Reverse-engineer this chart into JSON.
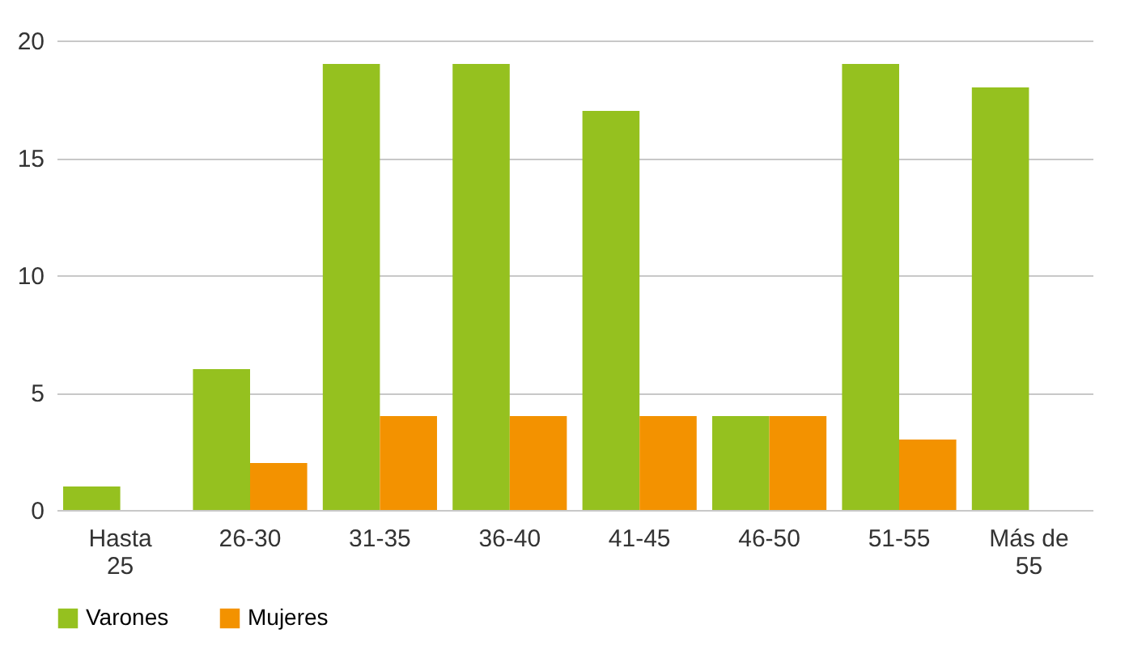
{
  "chart_data": {
    "type": "bar",
    "categories": [
      "Hasta 25",
      "26-30",
      "31-35",
      "36-40",
      "41-45",
      "46-50",
      "51-55",
      "Más de 55"
    ],
    "series": [
      {
        "name": "Varones",
        "color": "#95c11f",
        "values": [
          1,
          6,
          19,
          19,
          17,
          4,
          19,
          18
        ]
      },
      {
        "name": "Mujeres",
        "color": "#f39200",
        "values": [
          0,
          2,
          4,
          4,
          4,
          4,
          3,
          0
        ]
      }
    ],
    "ylim": [
      0,
      20
    ],
    "yticks": [
      0,
      5,
      10,
      15,
      20
    ],
    "grid": "y",
    "legend": "bottom"
  }
}
